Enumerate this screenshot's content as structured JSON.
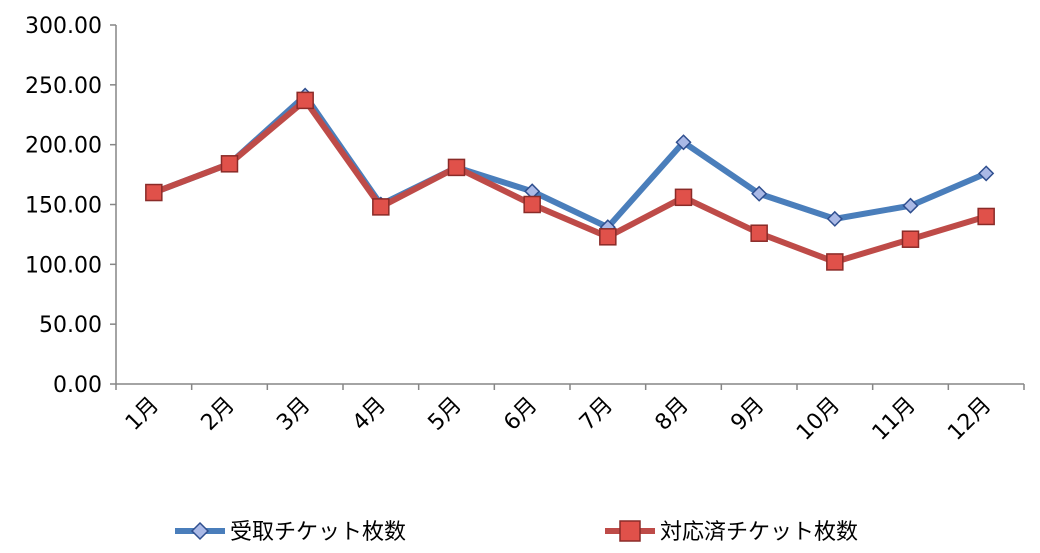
{
  "chart_data": {
    "type": "line",
    "categories": [
      "1月",
      "2月",
      "3月",
      "4月",
      "5月",
      "6月",
      "7月",
      "8月",
      "9月",
      "10月",
      "11月",
      "12月"
    ],
    "series": [
      {
        "name": "受取チケット枚数",
        "values": [
          160,
          184,
          241,
          150,
          181,
          161,
          131,
          202,
          159,
          138,
          149,
          176
        ],
        "color": "#4a7ebb",
        "marker": "diamond",
        "marker_fill": "#aab9e6"
      },
      {
        "name": "対応済チケット枚数",
        "values": [
          160,
          184,
          237,
          148,
          181,
          150,
          123,
          156,
          126,
          102,
          121,
          140
        ],
        "color": "#be4b48",
        "marker": "square",
        "marker_fill": "#e0514a"
      }
    ],
    "y_ticks": [
      "0.00",
      "50.00",
      "100.00",
      "150.00",
      "200.00",
      "250.00",
      "300.00"
    ],
    "ylim": [
      0,
      300
    ],
    "grid": false,
    "legend_position": "bottom"
  }
}
